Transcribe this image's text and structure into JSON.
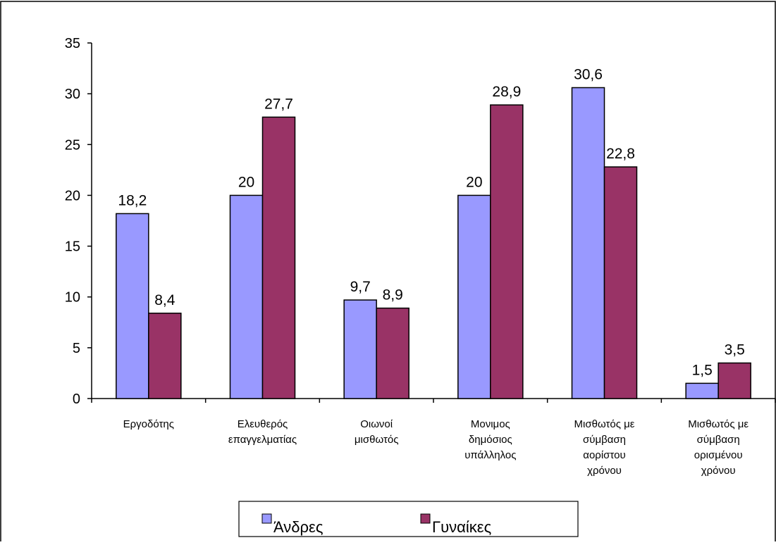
{
  "chart_data": {
    "type": "bar",
    "categories": [
      [
        "Εργοδότης"
      ],
      [
        "Ελευθερός",
        "επαγγελματίας"
      ],
      [
        "Οιωνοί",
        "μισθωτός"
      ],
      [
        "Μονιμος",
        "δημόσιος",
        "υπάλληλος"
      ],
      [
        "Μισθωτός με",
        "σύμβαση",
        "αορίστου",
        "χρόνου"
      ],
      [
        "Μισθωτός με",
        "σύμβαση",
        "ορισμένου",
        "χρόνου"
      ]
    ],
    "series": [
      {
        "name": "Άνδρες",
        "color": "#9999ff",
        "values": [
          18.2,
          20,
          9.7,
          20,
          30.6,
          1.5
        ],
        "labels": [
          "18,2",
          "20",
          "9,7",
          "20",
          "30,6",
          "1,5"
        ]
      },
      {
        "name": "Γυναίκες",
        "color": "#993366",
        "values": [
          8.4,
          27.7,
          8.9,
          28.9,
          22.8,
          3.5
        ],
        "labels": [
          "8,4",
          "27,7",
          "8,9",
          "28,9",
          "22,8",
          "3,5"
        ]
      }
    ],
    "ylim": [
      0,
      35
    ],
    "yticks": [
      0,
      5,
      10,
      15,
      20,
      25,
      30,
      35
    ],
    "grid": false,
    "legend_position": "bottom"
  }
}
